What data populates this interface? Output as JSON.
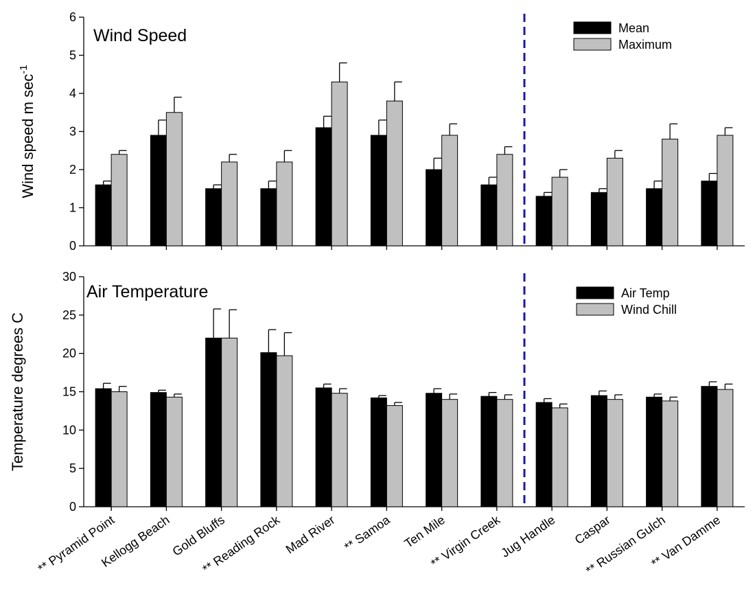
{
  "chart_data": [
    {
      "type": "bar",
      "title": "Wind Speed",
      "xlabel": "",
      "ylabel": "Wind speed m sec",
      "ylabel_superscript": "-1",
      "ylim": [
        0,
        6
      ],
      "yticks": [
        "0",
        "1",
        "2",
        "3",
        "4",
        "5",
        "6"
      ],
      "categories": [
        "** Pyramid Point",
        "Kellogg Beach",
        "Gold Bluffs",
        "** Reading Rock",
        "Mad River",
        "** Samoa",
        "Ten Mile",
        "** Virgin Creek",
        "Jug Handle",
        "Caspar",
        "** Russian Gulch",
        "** Van Damme"
      ],
      "series": [
        {
          "name": "Mean",
          "color": "#000000",
          "values": [
            1.6,
            2.9,
            1.5,
            1.5,
            3.1,
            2.9,
            2.0,
            1.6,
            1.3,
            1.4,
            1.5,
            1.7
          ],
          "errors": [
            0.1,
            0.4,
            0.1,
            0.2,
            0.3,
            0.4,
            0.3,
            0.2,
            0.1,
            0.1,
            0.2,
            0.2
          ]
        },
        {
          "name": "Maximum",
          "color": "#c0c0c0",
          "values": [
            2.4,
            3.5,
            2.2,
            2.2,
            4.3,
            3.8,
            2.9,
            2.4,
            1.8,
            2.3,
            2.8,
            2.9
          ],
          "errors": [
            0.1,
            0.4,
            0.2,
            0.3,
            0.5,
            0.5,
            0.3,
            0.2,
            0.2,
            0.2,
            0.4,
            0.2
          ]
        }
      ],
      "divider_after_index": 7,
      "divider_color": "#1a1aa8",
      "legend": "top-right"
    },
    {
      "type": "bar",
      "title": "Air Temperature",
      "xlabel": "",
      "ylabel": "Temperature degrees C",
      "ylim": [
        0,
        30
      ],
      "yticks": [
        "0",
        "5",
        "10",
        "15",
        "20",
        "25",
        "30"
      ],
      "categories": [
        "** Pyramid Point",
        "Kellogg Beach",
        "Gold Bluffs",
        "** Reading Rock",
        "Mad River",
        "** Samoa",
        "Ten Mile",
        "** Virgin Creek",
        "Jug Handle",
        "Caspar",
        "** Russian Gulch",
        "** Van Damme"
      ],
      "series": [
        {
          "name": "Air Temp",
          "color": "#000000",
          "values": [
            15.4,
            14.9,
            22.0,
            20.1,
            15.5,
            14.2,
            14.8,
            14.4,
            13.6,
            14.5,
            14.3,
            15.7
          ],
          "errors": [
            0.7,
            0.3,
            3.8,
            3.0,
            0.5,
            0.3,
            0.6,
            0.5,
            0.5,
            0.6,
            0.4,
            0.6
          ]
        },
        {
          "name": "Wind Chill",
          "color": "#c0c0c0",
          "values": [
            15.0,
            14.3,
            22.0,
            19.7,
            14.8,
            13.2,
            14.0,
            14.0,
            12.9,
            14.0,
            13.8,
            15.3
          ],
          "errors": [
            0.7,
            0.4,
            3.7,
            3.0,
            0.6,
            0.4,
            0.7,
            0.6,
            0.5,
            0.6,
            0.5,
            0.7
          ]
        }
      ],
      "divider_after_index": 7,
      "divider_color": "#1a1aa8",
      "legend": "top-right"
    }
  ]
}
